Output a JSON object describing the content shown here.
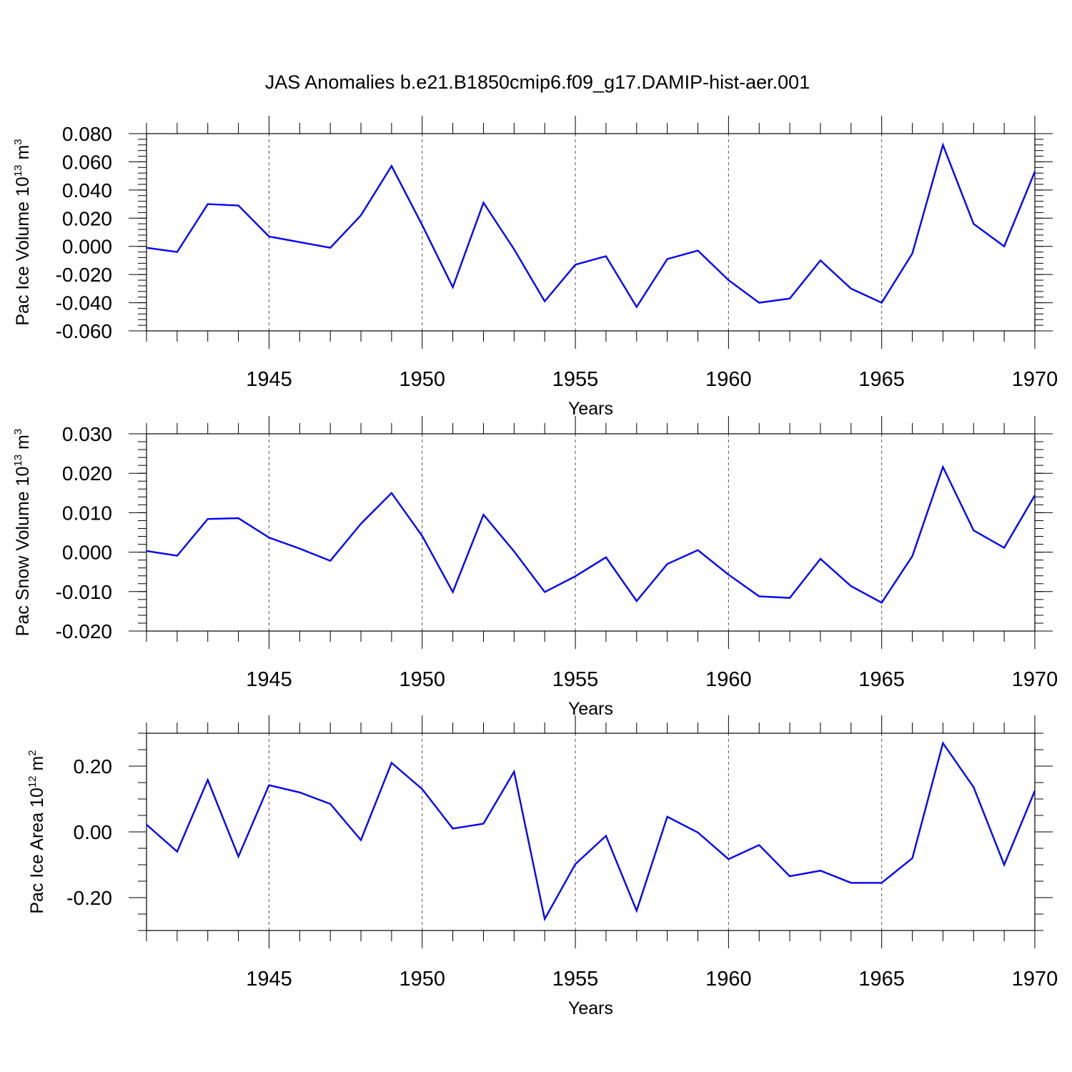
{
  "title": "JAS Anomalies b.e21.B1850cmip6.f09_g17.DAMIP-hist-aer.001",
  "line_color": "#0000ff",
  "chart_data": [
    {
      "type": "line",
      "ylabel": {
        "pre": "Pac Ice Volume 10",
        "exp": "13",
        "mid": " m",
        "unit_exp": "3"
      },
      "xlabel": "Years",
      "xlim": [
        1941,
        1970
      ],
      "ylim": [
        -0.06,
        0.08
      ],
      "ymajor": [
        -0.06,
        -0.04,
        -0.02,
        0.0,
        0.02,
        0.04,
        0.06,
        0.08
      ],
      "ytick_labels": [
        "-0.060",
        "-0.040",
        "-0.020",
        "0.000",
        "0.020",
        "0.040",
        "0.060",
        "0.080"
      ],
      "yminor_step": 0.004,
      "xticks": [
        1945,
        1950,
        1955,
        1960,
        1965,
        1970
      ],
      "xtick_labels": [
        "1945",
        "1950",
        "1955",
        "1960",
        "1965",
        "1970"
      ],
      "grid": "vertical dashed at major x ticks",
      "x": [
        1941,
        1942,
        1943,
        1944,
        1945,
        1946,
        1947,
        1948,
        1949,
        1950,
        1951,
        1952,
        1953,
        1954,
        1955,
        1956,
        1957,
        1958,
        1959,
        1960,
        1961,
        1962,
        1963,
        1964,
        1965,
        1966,
        1967,
        1968,
        1969,
        1970
      ],
      "y": [
        -0.001,
        -0.004,
        0.03,
        0.029,
        0.007,
        0.003,
        -0.001,
        0.022,
        0.057,
        0.015,
        -0.029,
        0.031,
        -0.002,
        -0.039,
        -0.013,
        -0.007,
        -0.043,
        -0.009,
        -0.003,
        -0.024,
        -0.04,
        -0.037,
        -0.01,
        -0.03,
        -0.04,
        -0.005,
        0.072,
        0.016,
        0.0,
        0.053
      ]
    },
    {
      "type": "line",
      "ylabel": {
        "pre": "Pac Snow Volume 10",
        "exp": "13",
        "mid": " m",
        "unit_exp": "3"
      },
      "xlabel": "Years",
      "xlim": [
        1941,
        1970
      ],
      "ylim": [
        -0.02,
        0.03
      ],
      "ymajor": [
        -0.02,
        -0.01,
        0.0,
        0.01,
        0.02,
        0.03
      ],
      "ytick_labels": [
        "-0.020",
        "-0.010",
        "0.000",
        "0.010",
        "0.020",
        "0.030"
      ],
      "yminor_step": 0.002,
      "xticks": [
        1945,
        1950,
        1955,
        1960,
        1965,
        1970
      ],
      "xtick_labels": [
        "1945",
        "1950",
        "1955",
        "1960",
        "1965",
        "1970"
      ],
      "grid": "vertical dashed at major x ticks",
      "x": [
        1941,
        1942,
        1943,
        1944,
        1945,
        1946,
        1947,
        1948,
        1949,
        1950,
        1951,
        1952,
        1953,
        1954,
        1955,
        1956,
        1957,
        1958,
        1959,
        1960,
        1961,
        1962,
        1963,
        1964,
        1965,
        1966,
        1967,
        1968,
        1969,
        1970
      ],
      "y": [
        0.0003,
        -0.0009,
        0.0084,
        0.0086,
        0.0037,
        0.0009,
        -0.0022,
        0.0072,
        0.015,
        0.0041,
        -0.0101,
        0.0095,
        0.0002,
        -0.0101,
        -0.0061,
        -0.0013,
        -0.0124,
        -0.003,
        0.0005,
        -0.0057,
        -0.0112,
        -0.0116,
        -0.0017,
        -0.0086,
        -0.0128,
        -0.001,
        0.0216,
        0.0055,
        0.0011,
        0.0144
      ]
    },
    {
      "type": "line",
      "ylabel": {
        "pre": "Pac Ice Area 10",
        "exp": "12",
        "mid": " m",
        "unit_exp": "2"
      },
      "xlabel": "Years",
      "xlim": [
        1941,
        1970
      ],
      "ylim": [
        -0.3,
        0.3
      ],
      "ymajor": [
        -0.2,
        0.0,
        0.2
      ],
      "ytick_labels": [
        "-0.20",
        "0.00",
        "0.20"
      ],
      "yminor_step": 0.05,
      "xticks": [
        1945,
        1950,
        1955,
        1960,
        1965,
        1970
      ],
      "xtick_labels": [
        "1945",
        "1950",
        "1955",
        "1960",
        "1965",
        "1970"
      ],
      "grid": "vertical dashed at major x ticks",
      "x": [
        1941,
        1942,
        1943,
        1944,
        1945,
        1946,
        1947,
        1948,
        1949,
        1950,
        1951,
        1952,
        1953,
        1954,
        1955,
        1956,
        1957,
        1958,
        1959,
        1960,
        1961,
        1962,
        1963,
        1964,
        1965,
        1966,
        1967,
        1968,
        1969,
        1970
      ],
      "y": [
        0.022,
        -0.06,
        0.158,
        -0.075,
        0.142,
        0.12,
        0.085,
        -0.025,
        0.21,
        0.13,
        0.01,
        0.025,
        0.183,
        -0.265,
        -0.098,
        -0.012,
        -0.24,
        0.046,
        -0.002,
        -0.083,
        -0.04,
        -0.135,
        -0.118,
        -0.155,
        -0.155,
        -0.08,
        0.27,
        0.136,
        -0.1,
        0.125
      ]
    }
  ]
}
